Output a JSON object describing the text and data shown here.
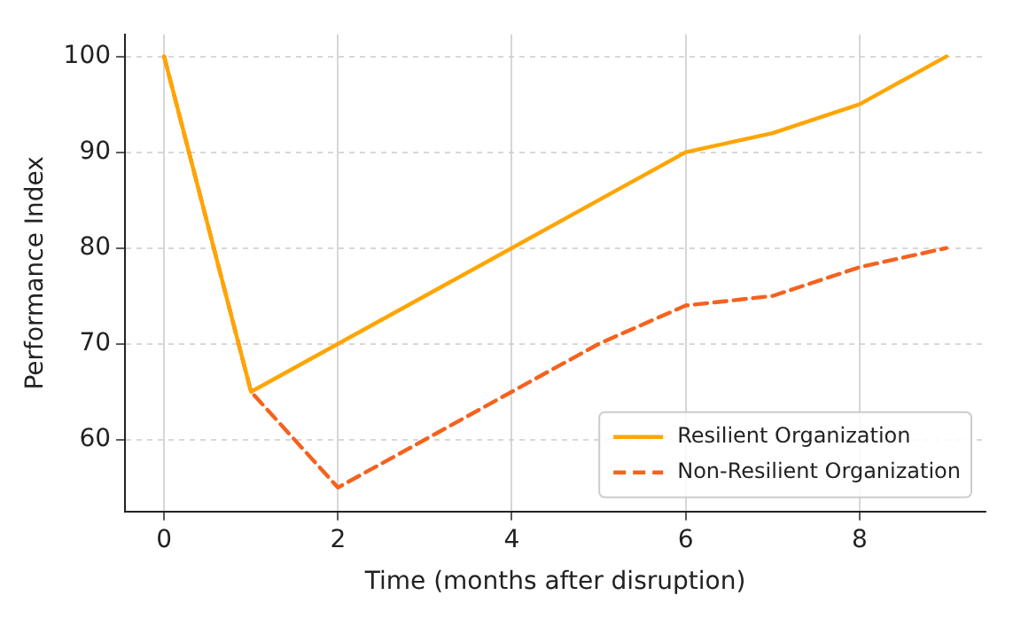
{
  "chart_data": {
    "type": "line",
    "xlabel": "Time (months after disruption)",
    "ylabel": "Performance Index",
    "x": [
      0,
      1,
      2,
      3,
      4,
      5,
      6,
      7,
      8,
      9
    ],
    "series": [
      {
        "name": "Resilient Organization",
        "color": "#ffa500",
        "line_style": "solid",
        "values": [
          100,
          65,
          70,
          75,
          80,
          85,
          90,
          92,
          95,
          100
        ]
      },
      {
        "name": "Non-Resilient Organization",
        "color": "#f5621e",
        "line_style": "dashed",
        "values": [
          100,
          65,
          55,
          60,
          65,
          70,
          74,
          75,
          78,
          80
        ]
      }
    ],
    "xlim": [
      -0.45,
      9.45
    ],
    "xticks": [
      0,
      2,
      4,
      6,
      8
    ],
    "ylim": [
      52.5,
      102.3
    ],
    "yticks": [
      60,
      70,
      80,
      90,
      100
    ],
    "grid": true,
    "legend": "bottom right",
    "marker": "none"
  }
}
